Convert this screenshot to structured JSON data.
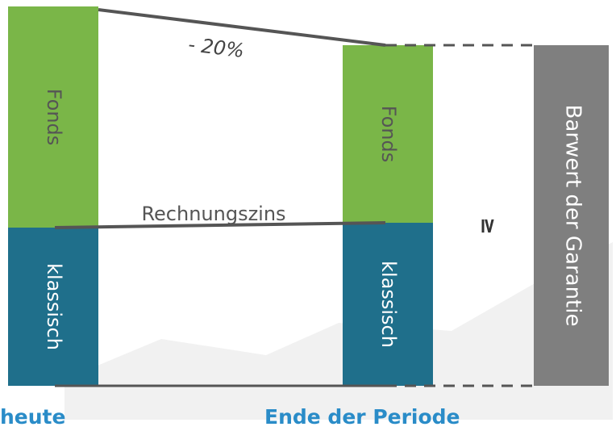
{
  "today": {
    "label": "heute",
    "fund": "Fonds",
    "classic": "klassisch"
  },
  "end": {
    "label": "Ende der Periode",
    "fund": "Fonds",
    "classic": "klassisch"
  },
  "guarantee": "Barwert der Garantie",
  "fund_change": "- 20%",
  "interest_line": "Rechnungszins",
  "comparison": "≥"
}
